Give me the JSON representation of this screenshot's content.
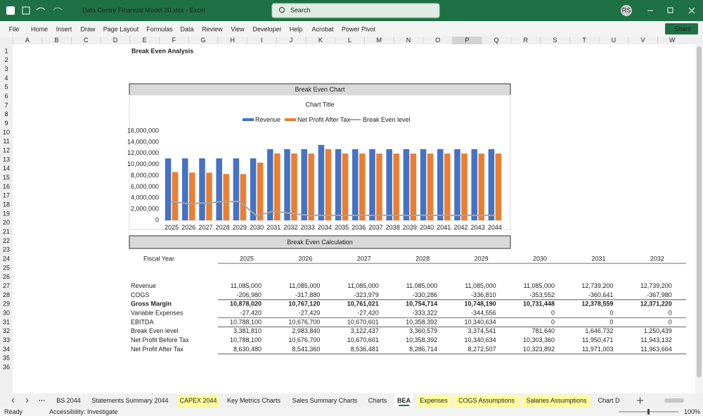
{
  "titlebar": {
    "filename": "Data Centre Financial Model 20.xlsx  -  Excel",
    "search": "Search",
    "user": "RS"
  },
  "menu": {
    "items": [
      "File",
      "Home",
      "Insert",
      "Draw",
      "Page Layout",
      "Formulas",
      "Data",
      "Review",
      "View",
      "Developer",
      "Help",
      "Acrobat",
      "Power Pivot"
    ],
    "share": "Share"
  },
  "grid": {
    "columns": [
      "A",
      "B",
      "C",
      "D",
      "E",
      "F",
      "G",
      "H",
      "I",
      "J",
      "K",
      "L",
      "M",
      "N",
      "O",
      "P",
      "Q",
      "R",
      "S",
      "T",
      "U",
      "V",
      "W"
    ],
    "rows": [
      1,
      2,
      3,
      4,
      5,
      6,
      7,
      8,
      9,
      10,
      11,
      12,
      13,
      14,
      15,
      16,
      17,
      18,
      19,
      20,
      21,
      22,
      23,
      24,
      25,
      26,
      27,
      28,
      29,
      30,
      31,
      32,
      33,
      34,
      35,
      36
    ]
  },
  "sheet_title": "Break Even Analysis",
  "chart_header": "Break Even Chart",
  "chart_data": {
    "type": "bar",
    "title": "Chart Title",
    "categories": [
      "2025",
      "2026",
      "2027",
      "2028",
      "2029",
      "2030",
      "2031",
      "2032",
      "2033",
      "2034",
      "2035",
      "2036",
      "2037",
      "2038",
      "2039",
      "2040",
      "2041",
      "2042",
      "2043",
      "2044"
    ],
    "series": [
      {
        "name": "Revenue",
        "color": "#4472c4",
        "values": [
          11085000,
          11085000,
          11085000,
          11085000,
          11085000,
          11085000,
          12739200,
          12739200,
          12739200,
          13500000,
          12739200,
          12739200,
          12739200,
          12739200,
          12739200,
          12739200,
          12739200,
          12739200,
          12739200,
          12739200
        ]
      },
      {
        "name": "Net Profit After Tax",
        "color": "#ed7d31",
        "values": [
          8630480,
          8541360,
          8536481,
          8286714,
          8272507,
          10323892,
          11971003,
          11963664,
          11950000,
          12750000,
          11950000,
          11950000,
          11950000,
          11950000,
          11950000,
          11950000,
          11950000,
          11950000,
          11950000,
          11950000
        ]
      },
      {
        "name": "Break Even level",
        "color": "#a5a5a5",
        "type": "line",
        "values": [
          3381810,
          2983840,
          3122437,
          3360579,
          3374541,
          781640,
          1646732,
          1250439,
          900000,
          900000,
          900000,
          900000,
          900000,
          900000,
          900000,
          900000,
          900000,
          900000,
          900000,
          900000
        ]
      }
    ],
    "ylim": [
      0,
      16000000
    ],
    "yticks": [
      0,
      {
        "value": 2000000,
        "label": "2,000,000"
      },
      {
        "value": 4000000,
        "label": "4,000,000"
      },
      {
        "value": 6000000,
        "label": "6,000,000"
      },
      {
        "value": 8000000,
        "label": "8,000,000"
      },
      {
        "value": 10000000,
        "label": "10,000,000"
      },
      {
        "value": 12000000,
        "label": "12,000,000"
      },
      {
        "value": 14000000,
        "label": "14,000,000"
      },
      {
        "value": 16000000,
        "label": "16,000,000"
      }
    ],
    "legend": "top"
  },
  "calc_header": "Break Even Calculation",
  "table": {
    "header": [
      "Fiscal Year",
      "2025",
      "2026",
      "2027",
      "2028",
      "2029",
      "2030",
      "2031",
      "2032"
    ],
    "rows": [
      [
        "Revenue",
        "11,085,000",
        "11,085,000",
        "11,085,000",
        "11,085,000",
        "11,085,000",
        "11,085,000",
        "12,739,200",
        "12,739,200"
      ],
      [
        "COGS",
        "-206,980",
        "-317,880",
        "-323,979",
        "-330,286",
        "-336,810",
        "-353,552",
        "-360,641",
        "-367,980"
      ],
      [
        "Gross Margin",
        "10,878,020",
        "10,767,120",
        "10,761,021",
        "10,754,714",
        "10,748,190",
        "10,731,448",
        "12,378,559",
        "12,371,220"
      ],
      [
        "Variable Expenses",
        "-27,420",
        "-27,420",
        "-27,420",
        "-333,322",
        "-344,556",
        "0",
        "0",
        "0"
      ],
      [
        "EBITDA",
        "10,788,100",
        "10,676,700",
        "10,670,601",
        "10,358,392",
        "10,340,634",
        "0",
        "0",
        "0"
      ],
      [
        "Break Even level",
        "3,381,810",
        "2,983,840",
        "3,122,437",
        "3,360,579",
        "3,374,541",
        "781,640",
        "1,646,732",
        "1,250,439"
      ],
      [
        "Net Profit Before Tax",
        "10,788,100",
        "10,676,700",
        "10,670,601",
        "10,358,392",
        "10,340,634",
        "10,303,360",
        "11,950,471",
        "11,943,132"
      ],
      [
        "Net Profit After Tax",
        "8,630,480",
        "8,541,360",
        "8,536,481",
        "8,286,714",
        "8,272,507",
        "10,323,892",
        "11,971,003",
        "11,963,664"
      ]
    ]
  },
  "tabs": {
    "items": [
      "BS 2044",
      "Statements Summary 2044",
      "CAPEX 2044",
      "Key Metrics Charts",
      "Sales Summary Charts",
      "Charts",
      "BEA",
      "Expenses",
      "COGS Assumptions",
      "Salaries Assumptions",
      "Chart D"
    ],
    "active": "BEA"
  },
  "status": {
    "ready": "Ready",
    "accessibility": "Accessibility: Investigate",
    "zoom": "100%"
  }
}
